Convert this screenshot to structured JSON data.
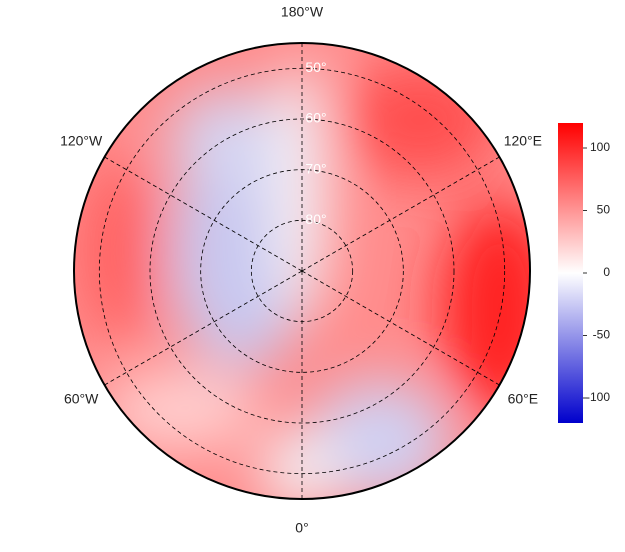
{
  "map": {
    "lon_labels": [
      {
        "value": -180,
        "label": "180°W"
      },
      {
        "value": -120,
        "label": "120°W"
      },
      {
        "value": 120,
        "label": "120°E"
      },
      {
        "value": -60,
        "label": "60°W"
      },
      {
        "value": 60,
        "label": "60°E"
      },
      {
        "value": 0,
        "label": "0°"
      }
    ],
    "lat_lim": [
      45,
      90
    ],
    "lat_rings": [
      {
        "value": 50,
        "label": "50°"
      },
      {
        "value": 60,
        "label": "60°"
      },
      {
        "value": 70,
        "label": "70°"
      },
      {
        "value": 80,
        "label": "80°"
      }
    ]
  },
  "colorbar": {
    "lim": [
      -120,
      120
    ],
    "ticks": [
      -100,
      -50,
      0,
      50,
      100
    ],
    "colors": [
      "#0000cc",
      "#ffffff",
      "#ff0000"
    ]
  }
}
